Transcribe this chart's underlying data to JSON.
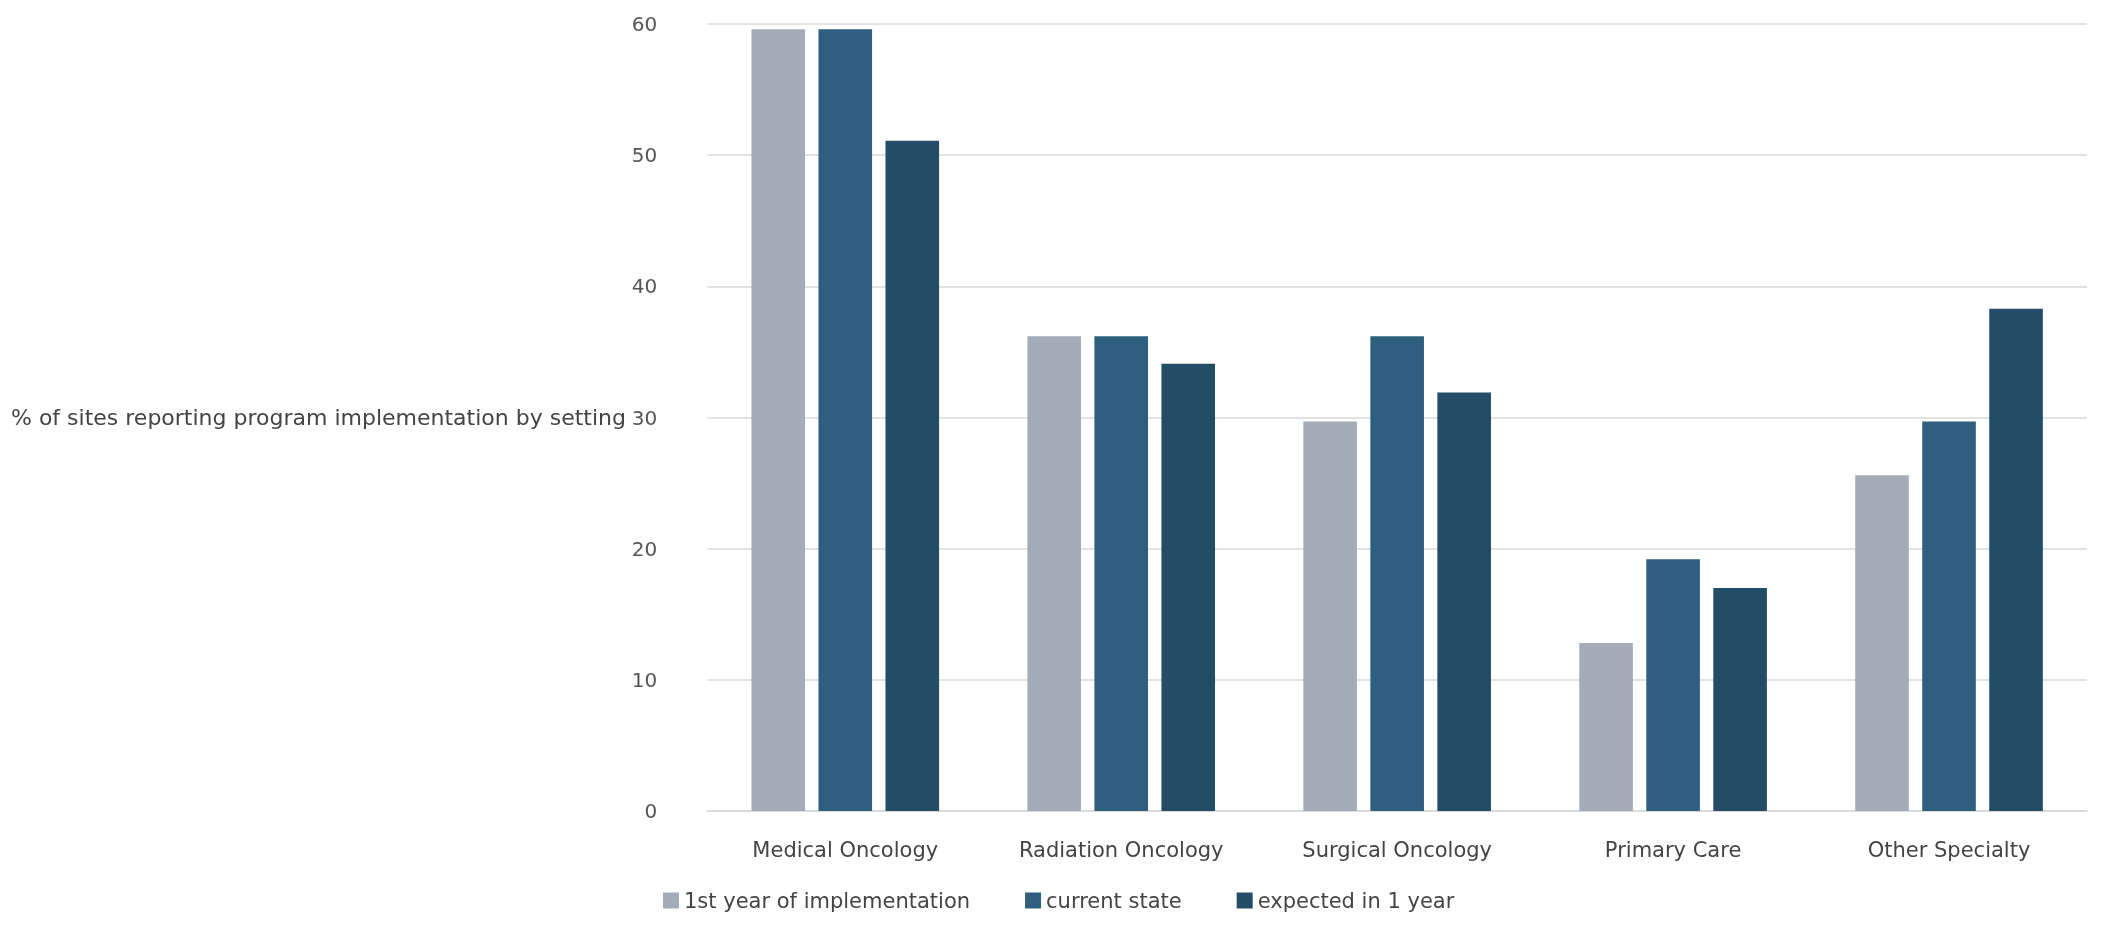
{
  "chart_data": {
    "type": "bar",
    "ylabel": "% of sites reporting program implementation by setting",
    "categories": [
      "Medical Oncology",
      "Radiation Oncology",
      "Surgical Oncology",
      "Primary Care",
      "Other Specialty"
    ],
    "series": [
      {
        "name": "1st year of implementation",
        "color": "#a3adb8",
        "values": [
          59.6,
          36.2,
          29.7,
          12.8,
          25.6
        ]
      },
      {
        "name": "current state",
        "color": "#2e5f7f",
        "values": [
          59.6,
          36.2,
          36.2,
          19.2,
          29.7
        ]
      },
      {
        "name": "expected in 1 year",
        "color": "#234d66",
        "values": [
          51.1,
          34.1,
          31.9,
          17.0,
          38.3
        ]
      }
    ],
    "ylim": [
      0,
      60
    ],
    "yticks": [
      0,
      10,
      20,
      30,
      40,
      50,
      60
    ],
    "grid": "y",
    "legend": "bottom"
  }
}
